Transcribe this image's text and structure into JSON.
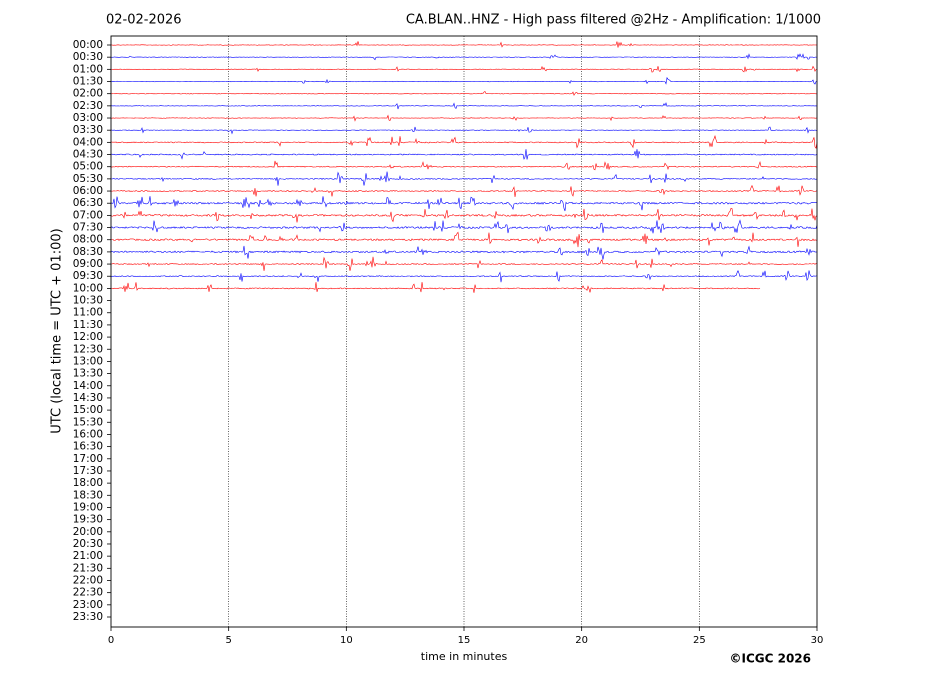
{
  "chart_data": {
    "type": "helicorder",
    "date": "02-02-2026",
    "title": "CA.BLAN..HNZ - High pass filtered @2Hz - Amplification: 1/1000",
    "xlabel": "time in minutes",
    "ylabel": "UTC (local time = UTC + 01:00)",
    "copyright": "©ICGC 2026",
    "categories": [
      "00:00",
      "00:30",
      "01:00",
      "01:30",
      "02:00",
      "02:30",
      "03:00",
      "03:30",
      "04:00",
      "04:30",
      "05:00",
      "05:30",
      "06:00",
      "06:30",
      "07:00",
      "07:30",
      "08:00",
      "08:30",
      "09:00",
      "09:30",
      "10:00",
      "10:30",
      "11:00",
      "11:30",
      "12:00",
      "12:30",
      "13:00",
      "13:30",
      "14:00",
      "14:30",
      "15:00",
      "15:30",
      "16:00",
      "16:30",
      "17:00",
      "17:30",
      "18:00",
      "18:30",
      "19:00",
      "19:30",
      "20:00",
      "20:30",
      "21:00",
      "21:30",
      "22:00",
      "22:30",
      "23:00",
      "23:30"
    ],
    "traces": [
      30,
      30,
      30,
      30,
      30,
      30,
      30,
      30,
      30,
      30,
      30,
      30,
      30,
      30,
      30,
      30,
      30,
      30,
      30,
      30,
      27.6
    ],
    "colors": [
      "#ff0000",
      "#0000ff"
    ],
    "xlim": [
      0,
      30
    ],
    "xticks": [
      0,
      5,
      10,
      15,
      20,
      25,
      30
    ],
    "grid": true
  }
}
